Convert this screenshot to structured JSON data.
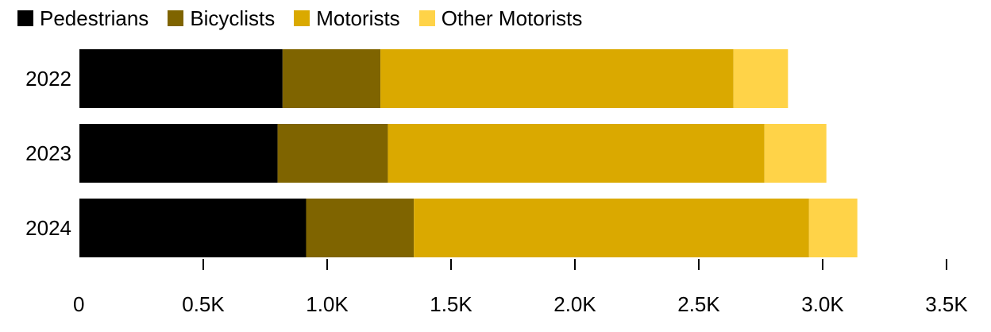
{
  "chart_data": {
    "type": "bar",
    "orientation": "horizontal",
    "stacked": true,
    "categories": [
      "2022",
      "2023",
      "2024"
    ],
    "series": [
      {
        "name": "Pedestrians",
        "color": "#000000",
        "values": [
          820,
          800,
          915
        ]
      },
      {
        "name": "Bicyclists",
        "color": "#7f6400",
        "values": [
          395,
          445,
          435
        ]
      },
      {
        "name": "Motorists",
        "color": "#daa900",
        "values": [
          1425,
          1520,
          1595
        ]
      },
      {
        "name": "Other Motorists",
        "color": "#ffd348",
        "values": [
          220,
          250,
          195
        ]
      }
    ],
    "xlim": [
      0,
      3500
    ],
    "xticks": [
      0,
      500,
      1000,
      1500,
      2000,
      2500,
      3000,
      3500
    ],
    "xtick_labels": [
      "0",
      "0.5K",
      "1.0K",
      "1.5K",
      "2.0K",
      "2.5K",
      "3.0K",
      "3.5K"
    ],
    "legend_position": "top-left",
    "grid": false,
    "title": "",
    "xlabel": "",
    "ylabel": ""
  }
}
